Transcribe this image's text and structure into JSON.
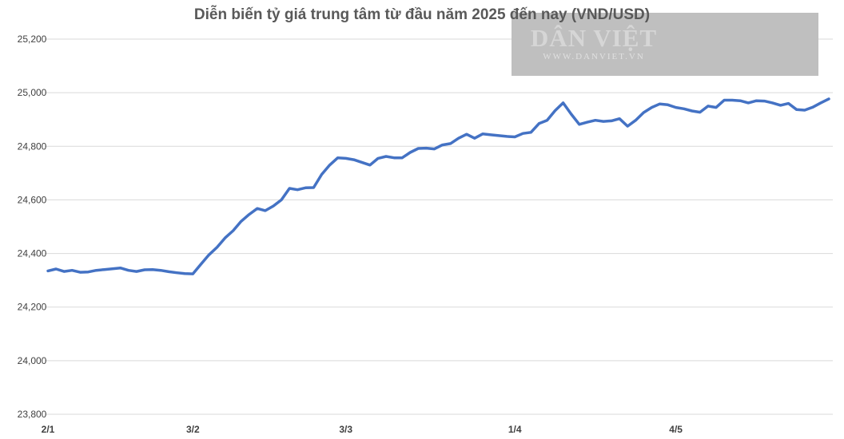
{
  "chart_data": {
    "type": "line",
    "title": "Diễn biến tỷ giá trung tâm từ đầu năm 2025 đến nay (VND/USD)",
    "xlabel": "",
    "ylabel": "",
    "ylim": [
      23800,
      25200
    ],
    "yticks": [
      23800,
      24000,
      24200,
      24400,
      24600,
      24800,
      25000,
      25200
    ],
    "ytick_labels": [
      "23,800",
      "24,000",
      "24,200",
      "24,400",
      "24,600",
      "24,800",
      "25,000",
      "25,200"
    ],
    "xtick_labels": [
      {
        "label": "2/1",
        "index": 0
      },
      {
        "label": "3/2",
        "index": 18
      },
      {
        "label": "3/3",
        "index": 37
      },
      {
        "label": "1/4",
        "index": 58
      },
      {
        "label": "4/5",
        "index": 78
      }
    ],
    "grid": true,
    "legend": "none",
    "line_color": "#4472c4",
    "watermark": {
      "main": "DÂN VIỆT",
      "sub": "WWW.DANVIET.VN"
    },
    "series": [
      {
        "name": "",
        "values": [
          24335,
          24342,
          24333,
          24337,
          24330,
          24331,
          24337,
          24340,
          24343,
          24346,
          24337,
          24333,
          24339,
          24340,
          24337,
          24332,
          24328,
          24325,
          24324,
          24360,
          24395,
          24423,
          24458,
          24485,
          24520,
          24546,
          24568,
          24560,
          24577,
          24600,
          24643,
          24638,
          24645,
          24646,
          24695,
          24730,
          24757,
          24755,
          24750,
          24740,
          24730,
          24755,
          24762,
          24757,
          24757,
          24777,
          24792,
          24793,
          24790,
          24805,
          24810,
          24830,
          24845,
          24830,
          24846,
          24843,
          24840,
          24837,
          24835,
          24848,
          24852,
          24885,
          24897,
          24933,
          24962,
          24920,
          24882,
          24890,
          24897,
          24893,
          24895,
          24903,
          24875,
          24897,
          24926,
          24945,
          24958,
          24955,
          24945,
          24940,
          24932,
          24927,
          24950,
          24945,
          24972,
          24972,
          24970,
          24962,
          24970,
          24969,
          24962,
          24953,
          24960,
          24937,
          24935,
          24946,
          24962,
          24977
        ]
      }
    ]
  }
}
